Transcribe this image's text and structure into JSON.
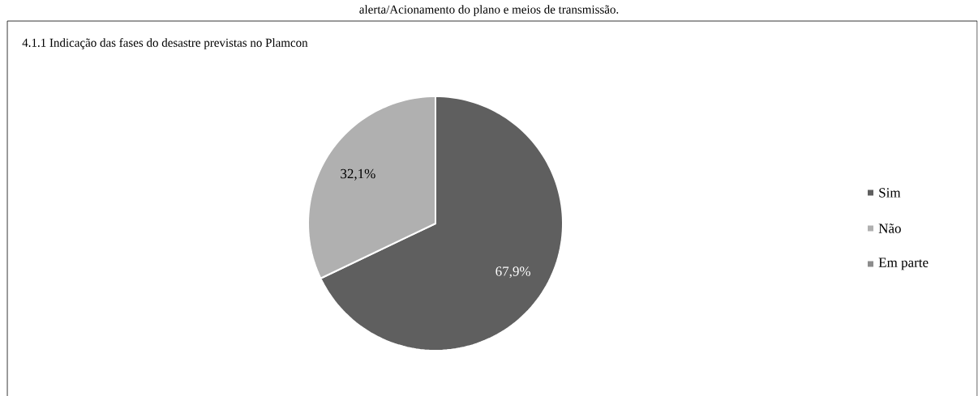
{
  "chart_data": {
    "type": "pie",
    "title": "4.1.1 Indicação das fases do desastre previstas no Plamcon",
    "annotations": [
      "alerta/Acionamento do plano e meios de transmissão."
    ],
    "categories": [
      "Sim",
      "Não",
      "Em parte"
    ],
    "values": [
      67.9,
      32.1,
      0
    ],
    "value_labels": [
      "67,9%",
      "32,1%",
      null
    ],
    "colors": [
      "#5f5f5f",
      "#b0b0b0",
      "#8c8c8c"
    ],
    "legend": "right"
  }
}
